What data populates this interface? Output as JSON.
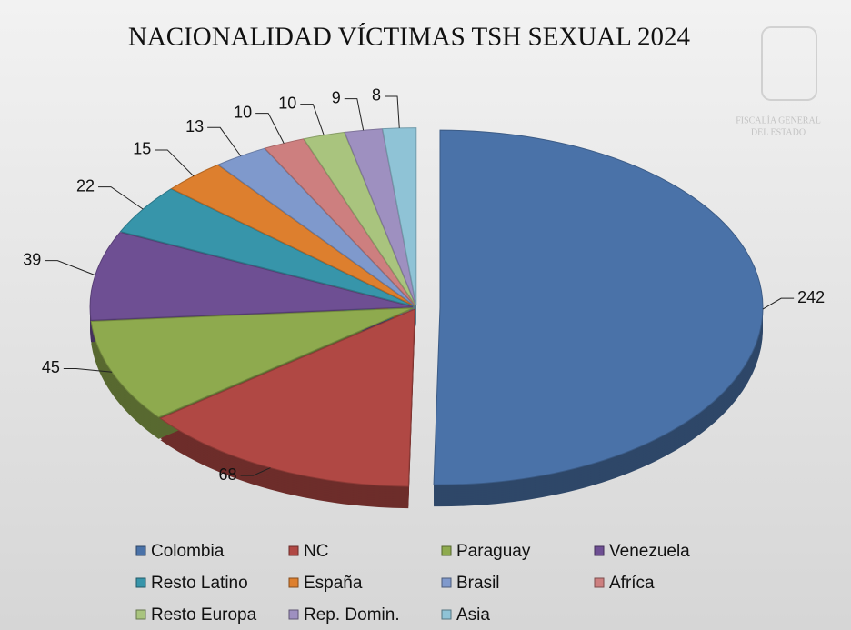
{
  "chart_data": {
    "type": "pie",
    "title": "NACIONALIDAD VÍCTIMAS TSH SEXUAL 2024",
    "categories": [
      "Colombia",
      "NC",
      "Paraguay",
      "Venezuela",
      "Resto Latino",
      "España",
      "Brasil",
      "Afríca",
      "Resto Europa",
      "Rep. Domin.",
      "Asia"
    ],
    "values": [
      242,
      68,
      45,
      39,
      22,
      15,
      13,
      10,
      10,
      9,
      8
    ],
    "colors": [
      "#4a72a8",
      "#b04844",
      "#8eaa4e",
      "#6e4f93",
      "#3795aa",
      "#dd7f2e",
      "#7f99cc",
      "#cd7f7f",
      "#a9c47e",
      "#9e90c0",
      "#8fc3d6"
    ]
  },
  "logo": {
    "lines": [
      "FISCALÍA GENERAL",
      "DEL ESTADO"
    ]
  }
}
